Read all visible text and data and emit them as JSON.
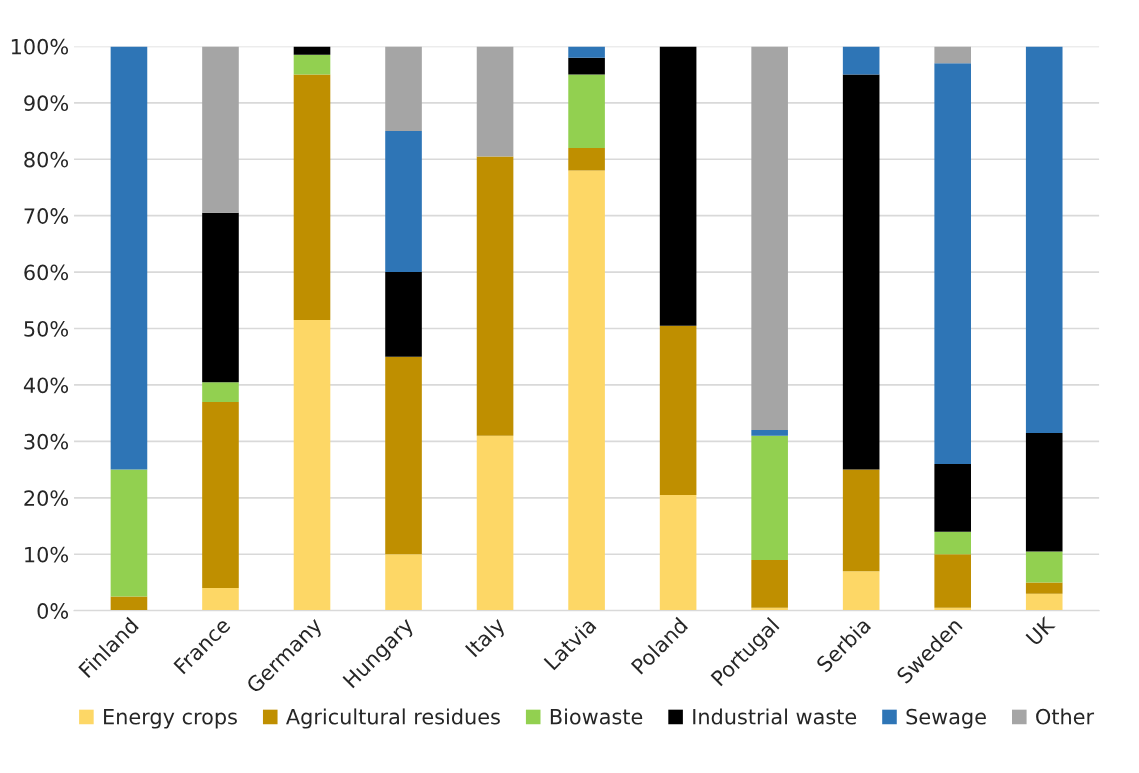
{
  "chart_data": {
    "type": "bar",
    "stacked": true,
    "categories": [
      "Finland",
      "France",
      "Germany",
      "Hungary",
      "Italy",
      "Latvia",
      "Poland",
      "Portugal",
      "Serbia",
      "Sweden",
      "UK"
    ],
    "series": [
      {
        "name": "Energy crops",
        "color": "#fdd766",
        "values": [
          0,
          4,
          51.5,
          10,
          31,
          78,
          20.5,
          0.5,
          7,
          0.5,
          3
        ]
      },
      {
        "name": "Agricultural residues",
        "color": "#bf8f00",
        "values": [
          2.5,
          33,
          43.5,
          35,
          49.5,
          4,
          30,
          8.5,
          18,
          9.5,
          2
        ]
      },
      {
        "name": "Biowaste",
        "color": "#92d050",
        "values": [
          22.5,
          3.5,
          3.5,
          0,
          0,
          13,
          0,
          22,
          0,
          4,
          5.5
        ]
      },
      {
        "name": "Industrial waste",
        "color": "#000000",
        "values": [
          0,
          30,
          1.5,
          15,
          0,
          3,
          49.5,
          0,
          70,
          12,
          21
        ]
      },
      {
        "name": "Sewage",
        "color": "#2e75b6",
        "values": [
          75,
          0,
          0,
          25,
          0,
          2,
          0,
          1,
          5,
          71,
          68.5
        ]
      },
      {
        "name": "Other",
        "color": "#a5a5a5",
        "values": [
          0,
          29.5,
          0,
          15,
          19.5,
          0,
          0,
          68,
          0,
          3,
          0
        ]
      }
    ],
    "ylim": [
      0,
      100
    ],
    "yticks": [
      {
        "value": 0,
        "label": "0%"
      },
      {
        "value": 10,
        "label": "10%"
      },
      {
        "value": 20,
        "label": "20%"
      },
      {
        "value": 30,
        "label": "30%"
      },
      {
        "value": 40,
        "label": "40%"
      },
      {
        "value": 50,
        "label": "50%"
      },
      {
        "value": 60,
        "label": "60%"
      },
      {
        "value": 70,
        "label": "70%"
      },
      {
        "value": 80,
        "label": "80%"
      },
      {
        "value": 90,
        "label": "90%"
      },
      {
        "value": 100,
        "label": "100%"
      }
    ],
    "grid": "y",
    "legend": "bottom"
  }
}
